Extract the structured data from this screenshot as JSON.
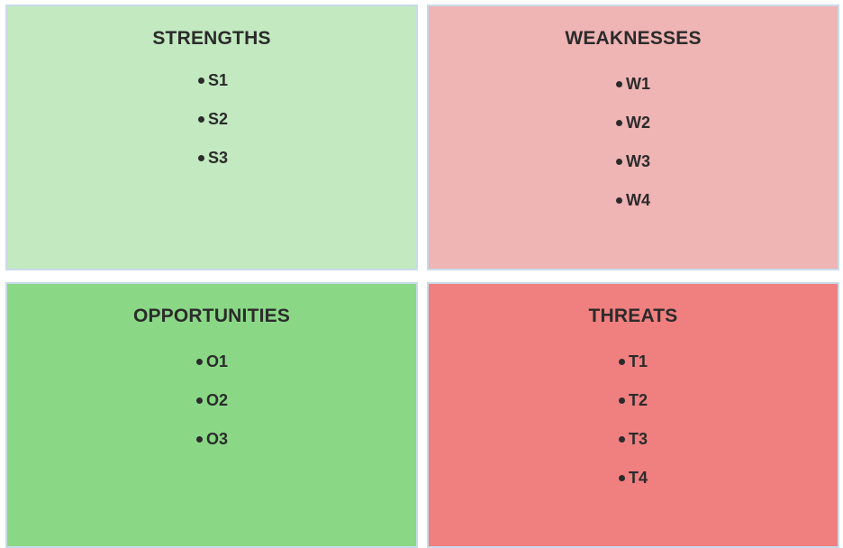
{
  "swot": {
    "strengths": {
      "title": "STRENGTHS",
      "color": "#c2e9c0",
      "items": [
        "S1",
        "S2",
        "S3"
      ]
    },
    "weaknesses": {
      "title": "WEAKNESSES",
      "color": "#efb4b4",
      "items": [
        "W1",
        "W2",
        "W3",
        "W4"
      ]
    },
    "opportunities": {
      "title": "OPPORTUNITIES",
      "color": "#8ad886",
      "items": [
        "O1",
        "O2",
        "O3"
      ]
    },
    "threats": {
      "title": "THREATS",
      "color": "#f07f7f",
      "items": [
        "T1",
        "T2",
        "T3",
        "T4"
      ]
    }
  }
}
